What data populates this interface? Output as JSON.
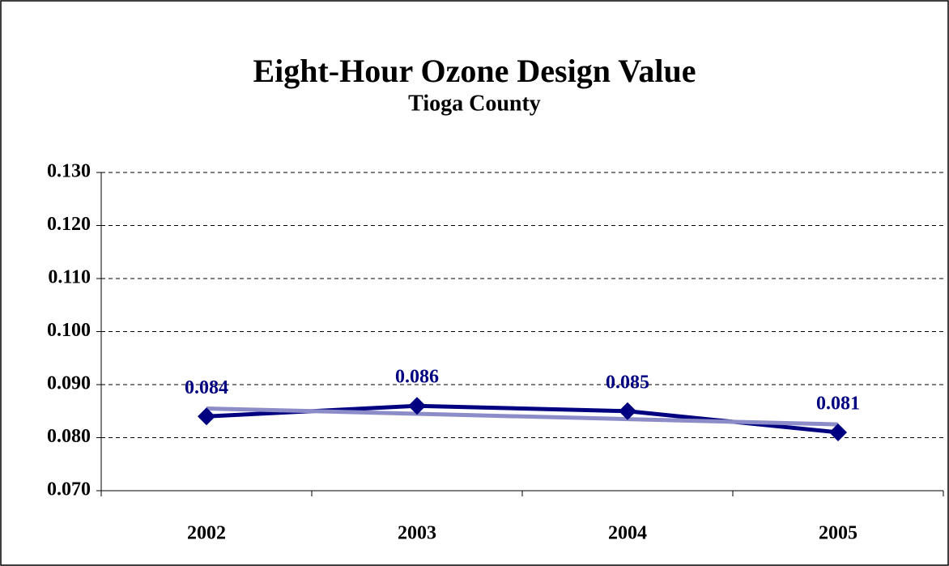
{
  "chart_data": {
    "type": "line",
    "title": "Eight-Hour Ozone Design Value",
    "subtitle": "Tioga County",
    "categories": [
      "2002",
      "2003",
      "2004",
      "2005"
    ],
    "series": [
      {
        "color": "#000080",
        "values": [
          0.084,
          0.086,
          0.085,
          0.081
        ]
      }
    ],
    "trendline": {
      "color": "#8c8cc8",
      "values": [
        0.0855,
        0.0845,
        0.0835,
        0.0825
      ]
    },
    "ylim": [
      0.07,
      0.13
    ],
    "yticks": [
      {
        "value": 0.07,
        "label": "0.070"
      },
      {
        "value": 0.08,
        "label": "0.080"
      },
      {
        "value": 0.09,
        "label": "0.090"
      },
      {
        "value": 0.1,
        "label": "0.100"
      },
      {
        "value": 0.11,
        "label": "0.110"
      },
      {
        "value": 0.12,
        "label": "0.120"
      },
      {
        "value": 0.13,
        "label": "0.130"
      }
    ],
    "grid": true
  }
}
